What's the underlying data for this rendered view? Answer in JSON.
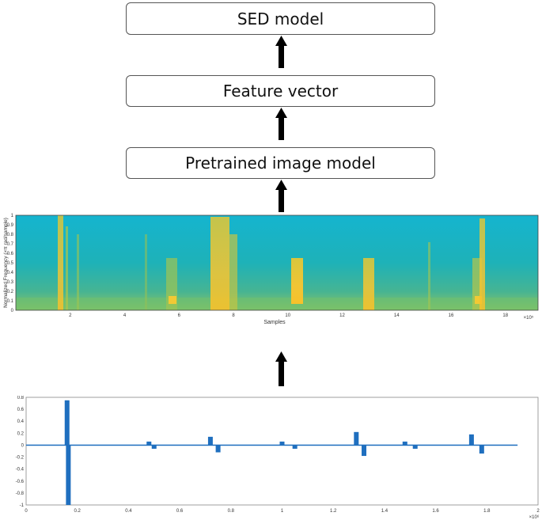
{
  "boxes": {
    "sed_model": "SED model",
    "feature_vector": "Feature vector",
    "pretrained_model": "Pretrained image model"
  },
  "spectrogram": {
    "ylabel": "Normalized Frequency (×π rad/sample)",
    "xlabel": "Samples",
    "x_exponent": "×10⁵",
    "x_ticks": [
      "2",
      "4",
      "6",
      "8",
      "10",
      "12",
      "14",
      "16",
      "18"
    ],
    "y_ticks": [
      "0",
      "0.1",
      "0.2",
      "0.3",
      "0.4",
      "0.5",
      "0.6",
      "0.7",
      "0.8",
      "0.9",
      "1"
    ],
    "background_color": "#1aafc8",
    "event_color": "#f2c934"
  },
  "chart_data": {
    "type": "line",
    "title": "",
    "xlabel": "",
    "ylabel": "",
    "x_exponent": "×10⁶",
    "xlim": [
      0,
      2
    ],
    "ylim": [
      -1,
      0.8
    ],
    "x_ticks": [
      "0",
      "0.2",
      "0.4",
      "0.6",
      "0.8",
      "1",
      "1.2",
      "1.4",
      "1.6",
      "1.8",
      "2"
    ],
    "y_ticks": [
      "0.8",
      "0.6",
      "0.4",
      "0.2",
      "0",
      "-0.2",
      "-0.4",
      "-0.6",
      "-0.8",
      "-1"
    ],
    "line_color": "#1f6fbf",
    "series": [
      {
        "x": [
          0,
          0.16,
          0.165,
          0.2,
          0.48,
          0.5,
          0.52,
          0.72,
          0.75,
          0.8,
          1.0,
          1.05,
          1.29,
          1.32,
          1.48,
          1.52,
          1.55,
          1.74,
          1.78,
          1.92
        ],
        "y": [
          0,
          0.75,
          -1.0,
          0,
          0.06,
          -0.06,
          0,
          0.14,
          -0.12,
          0,
          0.06,
          -0.06,
          0.22,
          -0.18,
          0.06,
          -0.06,
          0,
          0.18,
          -0.14,
          0
        ]
      }
    ]
  }
}
